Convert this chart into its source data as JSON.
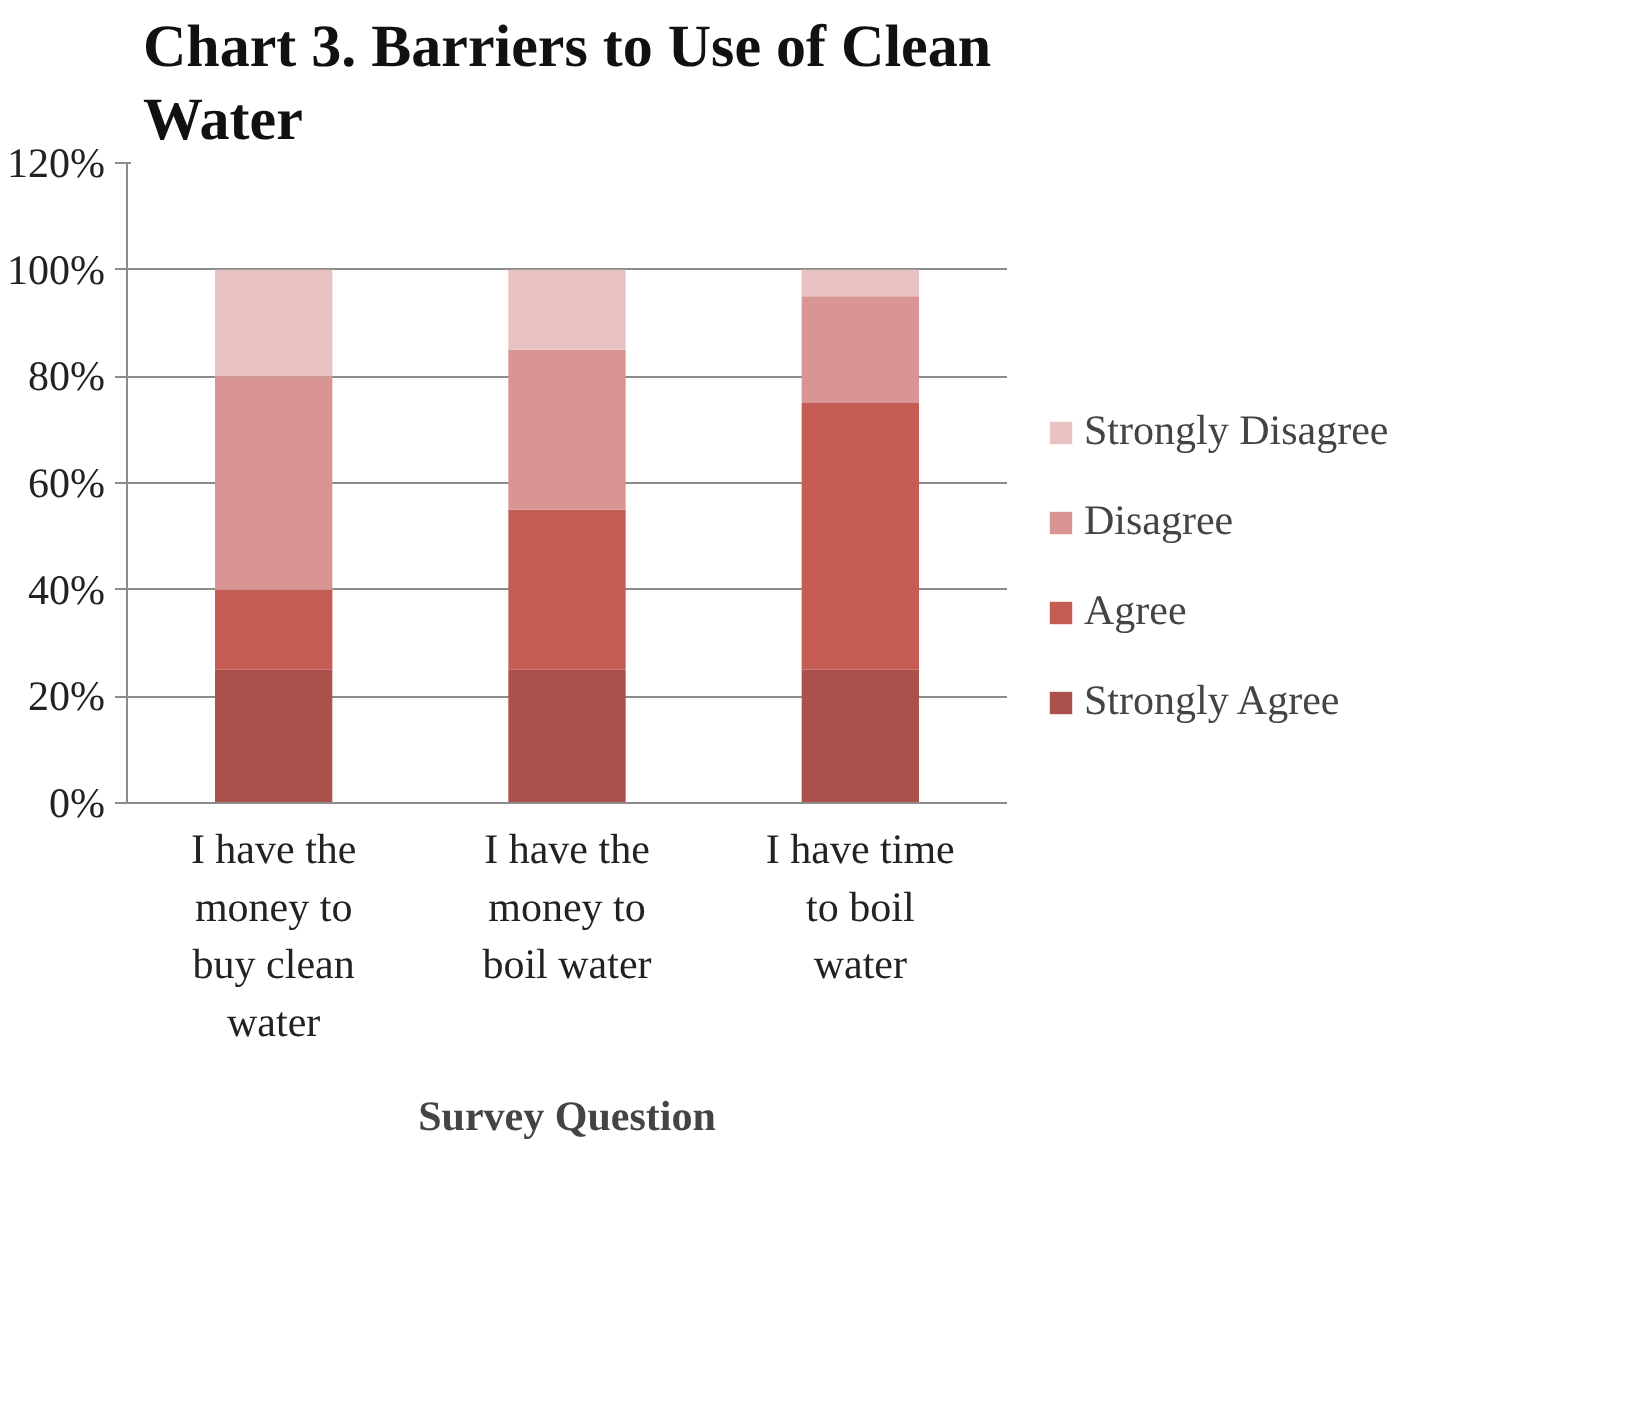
{
  "chart_data": {
    "type": "bar",
    "title": "Chart 3. Barriers to Use of Clean Water",
    "xlabel": "Survey Question",
    "categories": [
      "I have the money to buy clean water",
      "I have the money to boil water",
      "I have time to boil water"
    ],
    "stacked": true,
    "series": [
      {
        "name": "Strongly Agree",
        "color": "#a9514a",
        "values": [
          25,
          25,
          25
        ]
      },
      {
        "name": "Agree",
        "color": "#c65d55",
        "values": [
          15,
          30,
          50
        ]
      },
      {
        "name": "Disagree",
        "color": "#d99593",
        "values": [
          40,
          30,
          20
        ]
      },
      {
        "name": "Strongly Disagree",
        "color": "#e8c3c2",
        "values": [
          20,
          15,
          5
        ]
      }
    ],
    "ylim": [
      0,
      120
    ],
    "yticks": [
      {
        "value": 0,
        "label": "0%"
      },
      {
        "value": 20,
        "label": "20%"
      },
      {
        "value": 40,
        "label": "40%"
      },
      {
        "value": 60,
        "label": "60%"
      },
      {
        "value": 80,
        "label": "80%"
      },
      {
        "value": 100,
        "label": "100%"
      },
      {
        "value": 120,
        "label": "120%"
      }
    ],
    "grid": "y",
    "legend": "right"
  }
}
